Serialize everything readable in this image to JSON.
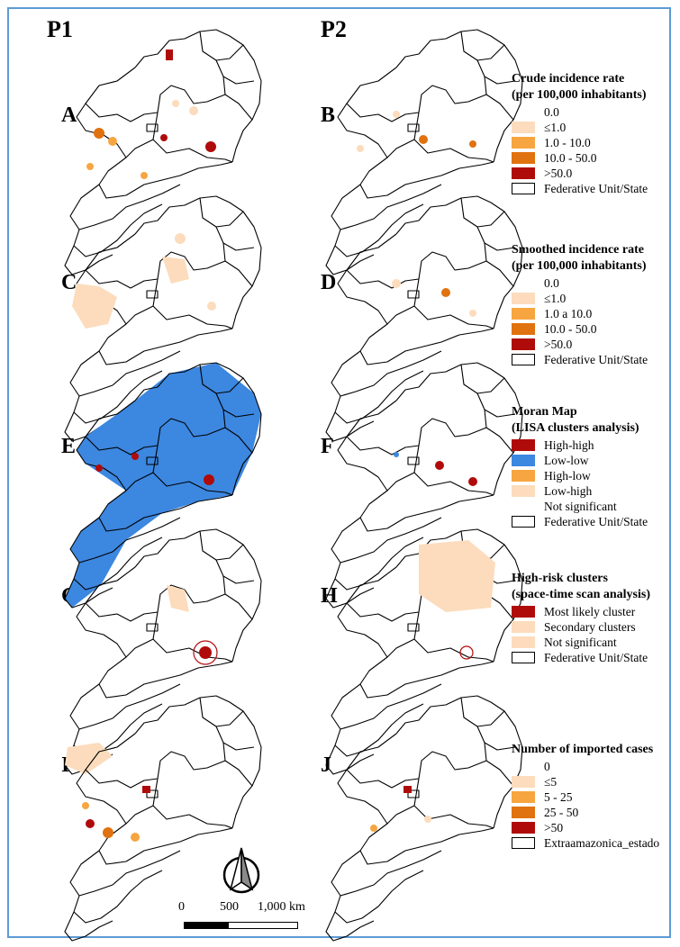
{
  "columns": {
    "left": "P1",
    "right": "P2"
  },
  "panels": {
    "A": "A",
    "B": "B",
    "C": "C",
    "D": "D",
    "E": "E",
    "F": "F",
    "G": "G",
    "H": "H",
    "I": "I",
    "J": "J"
  },
  "colors": {
    "pale": "#fcdcbd",
    "light_orange": "#f7a540",
    "orange": "#e0720f",
    "dark_red": "#b00b0b",
    "blue": "#3c87e0",
    "border_blue": "#5b9bd5"
  },
  "legends": {
    "crude": {
      "title_line1": "Crude incidence rate",
      "title_line2": "(per 100,000 inhabitants)",
      "items": [
        "0.0",
        "≤1.0",
        "1.0 - 10.0",
        "10.0 - 50.0",
        ">50.0",
        "Federative Unit/State"
      ]
    },
    "smoothed": {
      "title_line1": "Smoothed incidence rate",
      "title_line2": "(per 100,000 inhabitants)",
      "items": [
        "0.0",
        "≤1.0",
        "1.0 a 10.0",
        "10.0 - 50.0",
        ">50.0",
        "Federative Unit/State"
      ]
    },
    "moran": {
      "title_line1": "Moran Map",
      "title_line2": "(LISA clusters analysis)",
      "items": [
        "High-high",
        "Low-low",
        "High-low",
        "Low-high",
        "Not significant",
        "Federative Unit/State"
      ]
    },
    "scan": {
      "title_line1": "High-risk clusters",
      "title_line2": "(space-time scan analysis)",
      "items": [
        "Most likely cluster",
        "Secondary clusters",
        "Not significant",
        "Federative Unit/State"
      ]
    },
    "imported": {
      "title_line1": "Number of imported cases",
      "items": [
        "0",
        "≤5",
        "5 - 25",
        "25 - 50",
        ">50",
        "Extraamazonica_estado"
      ]
    }
  },
  "scale": {
    "labels": [
      "0",
      "500",
      "1,000 km"
    ]
  },
  "north_arrow": "north-arrow-icon"
}
